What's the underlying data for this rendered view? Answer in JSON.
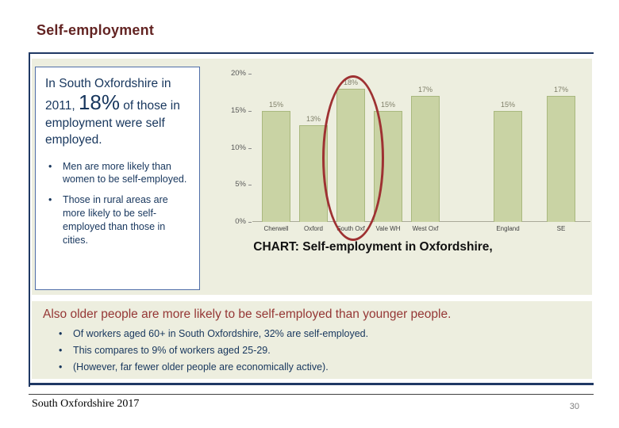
{
  "slide": {
    "title": "Self-employment",
    "footer": "South Oxfordshire 2017",
    "page_number": "30"
  },
  "textbox": {
    "intro_pre": "In South Oxfordshire in 2011, ",
    "intro_big": "18%",
    "intro_post": " of those in employment were self employed.",
    "bullets": [
      "Men are more likely than women to be self-employed.",
      "Those in rural areas are more likely to be self-employed than those in cities."
    ]
  },
  "chart": {
    "caption": "CHART: Self-employment in Oxfordshire,",
    "y_ticks": [
      "20%",
      "15%",
      "10%",
      "5%",
      "0%"
    ]
  },
  "chart_data": {
    "type": "bar",
    "title": "CHART: Self-employment in Oxfordshire,",
    "categories": [
      "Cherwell",
      "Oxford",
      "South Oxf",
      "Vale WH",
      "West Oxf",
      "England",
      "SE"
    ],
    "values": [
      15,
      13,
      18,
      15,
      17,
      15,
      17
    ],
    "value_labels": [
      "15%",
      "13%",
      "18%",
      "15%",
      "17%",
      "15%",
      "17%"
    ],
    "xlabel": "",
    "ylabel": "",
    "ylim": [
      0,
      20
    ],
    "y_tick_step": 5,
    "grid": false,
    "legend": false,
    "bar_color": "#C9D3A4",
    "bar_border_color": "#A9B87E",
    "highlight_category": "South Oxf",
    "highlight_marker": "red-ellipse",
    "highlight_color": "#9E3132"
  },
  "bottom": {
    "heading": "Also older people are more likely to be self-employed than younger people.",
    "bullets": [
      "Of workers aged 60+ in South Oxfordshire, 32% are self-employed.",
      "This compares to 9% of workers aged 25-29.",
      "(However, far fewer older people are economically active)."
    ]
  },
  "colors": {
    "panel_bg": "#EDEEDF",
    "frame_navy": "#1F3864",
    "title_color": "#632423",
    "heading_red": "#953735",
    "body_navy": "#17365D"
  }
}
